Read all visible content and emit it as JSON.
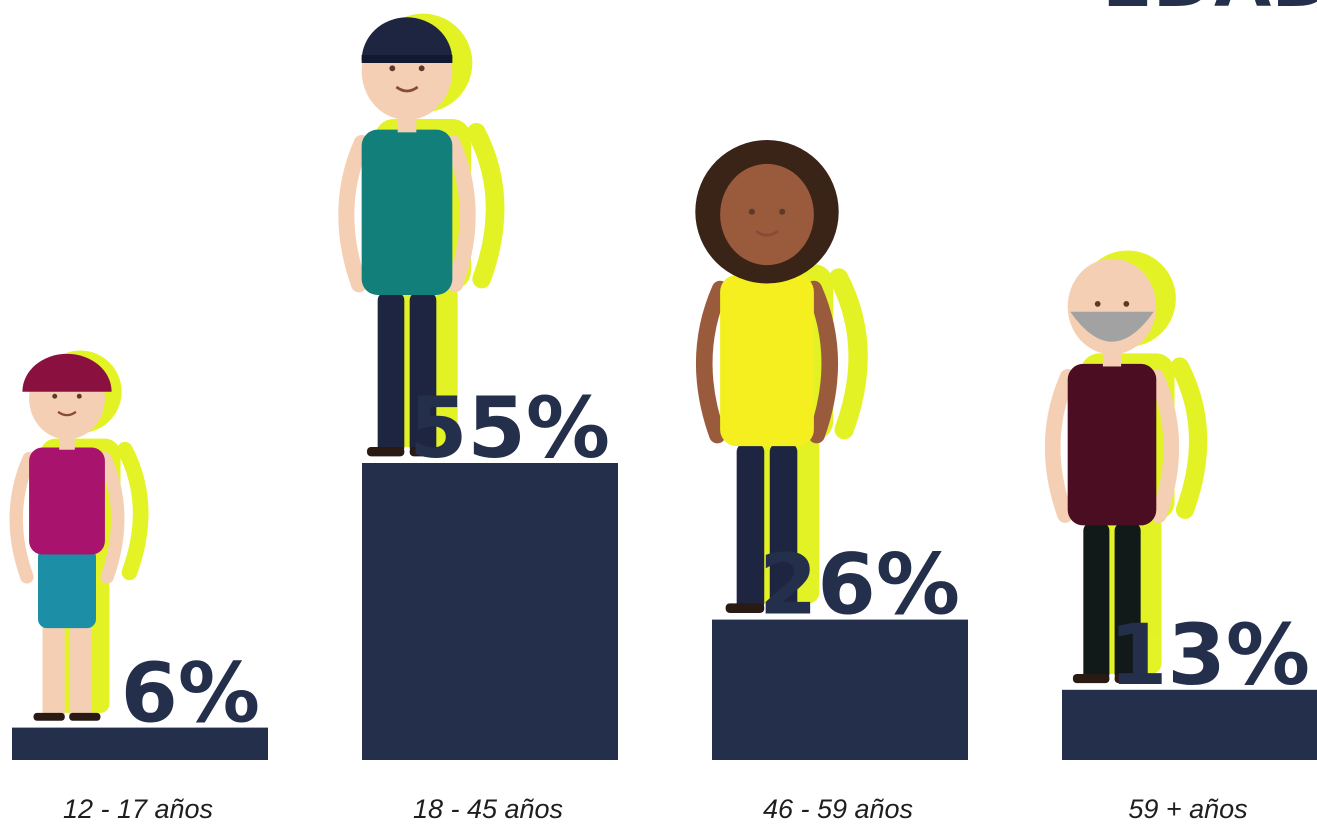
{
  "title": "EDAD",
  "chart_data": {
    "type": "bar",
    "categories": [
      "12 - 17 años",
      "18 - 45 años",
      "46 - 59 años",
      "59 +  años"
    ],
    "values": [
      6,
      55,
      26,
      13
    ],
    "value_labels": [
      "6%",
      "55%",
      "26%",
      "13%"
    ],
    "ylim": [
      0,
      60
    ],
    "grid": false,
    "legend": "none"
  },
  "colors": {
    "bar": "#232f4b",
    "text": "#232f4b",
    "accent_yellow": "#e2f21a",
    "skin_light": "#f4cfb4",
    "skin_dark": "#9a5a3c",
    "hair_dark": "#3a2417",
    "shirt_magenta": "#a7136d",
    "shirt_teal": "#137f7a",
    "shirt_yellow": "#f5ef1f",
    "shirt_maroon": "#4a0d22",
    "shorts_teal": "#1c8fa6",
    "cap_navy": "#1d2540",
    "beard_gray": "#a2a2a2"
  },
  "icons": [
    "teen-girl-icon",
    "young-man-icon",
    "woman-curly-hair-icon",
    "older-man-icon"
  ]
}
